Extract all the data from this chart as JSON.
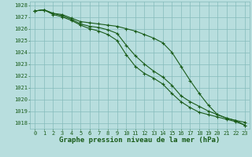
{
  "x": [
    0,
    1,
    2,
    3,
    4,
    5,
    6,
    7,
    8,
    9,
    10,
    11,
    12,
    13,
    14,
    15,
    16,
    17,
    18,
    19,
    20,
    21,
    22,
    23
  ],
  "line1": [
    1027.5,
    1027.6,
    1027.3,
    1027.2,
    1026.9,
    1026.6,
    1026.5,
    1026.4,
    1026.3,
    1026.2,
    1026.0,
    1025.8,
    1025.5,
    1025.2,
    1024.8,
    1024.0,
    1022.8,
    1021.6,
    1020.5,
    1019.5,
    1018.7,
    1018.4,
    1018.2,
    1018.05
  ],
  "line2": [
    1027.5,
    1027.6,
    1027.3,
    1027.1,
    1026.8,
    1026.4,
    1026.2,
    1026.1,
    1025.9,
    1025.6,
    1024.6,
    1023.7,
    1023.0,
    1022.4,
    1021.9,
    1021.2,
    1020.3,
    1019.8,
    1019.4,
    1019.0,
    1018.7,
    1018.4,
    1018.2,
    1017.8
  ],
  "line3": [
    1027.5,
    1027.6,
    1027.2,
    1027.0,
    1026.7,
    1026.3,
    1026.0,
    1025.8,
    1025.5,
    1025.0,
    1023.8,
    1022.8,
    1022.2,
    1021.8,
    1021.3,
    1020.5,
    1019.8,
    1019.3,
    1018.9,
    1018.7,
    1018.5,
    1018.3,
    1018.1,
    1017.8
  ],
  "line_color": "#1a5c1a",
  "bg_color": "#b8dede",
  "grid_color": "#85bbbb",
  "xlabel": "Graphe pression niveau de la mer (hPa)",
  "xlabel_color": "#1a5c1a",
  "tick_color": "#1a5c1a",
  "ylim": [
    1017.5,
    1028.3
  ],
  "yticks": [
    1018,
    1019,
    1020,
    1021,
    1022,
    1023,
    1024,
    1025,
    1026,
    1027,
    1028
  ],
  "xticks": [
    0,
    1,
    2,
    3,
    4,
    5,
    6,
    7,
    8,
    9,
    10,
    11,
    12,
    13,
    14,
    15,
    16,
    17,
    18,
    19,
    20,
    21,
    22,
    23
  ],
  "marker": "+",
  "markersize": 3.5,
  "linewidth": 0.8,
  "xlabel_fontsize": 6.5,
  "tick_fontsize": 5.0
}
